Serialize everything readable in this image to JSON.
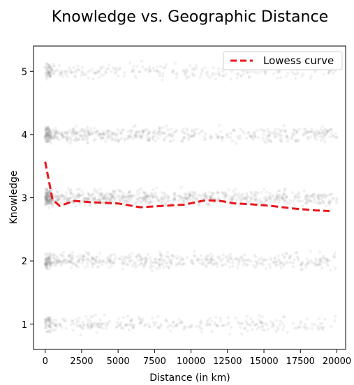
{
  "chart_data": {
    "type": "scatter",
    "title": "Knowledge vs. Geographic Distance",
    "xlabel": "Distance (in km)",
    "ylabel": "Knowledge",
    "xlim": [
      -800,
      20600
    ],
    "ylim": [
      0.6,
      5.4
    ],
    "xticks": [
      0,
      2500,
      5000,
      7500,
      10000,
      12500,
      15000,
      17500,
      20000
    ],
    "yticks": [
      1,
      2,
      3,
      4,
      5
    ],
    "grid": false,
    "legend_position": "top-right",
    "scatter": {
      "color": "#8c8c8c",
      "levels": [
        1,
        2,
        3,
        4,
        5
      ],
      "x_range": [
        0,
        20000
      ],
      "jitter": 0.12
    },
    "series": [
      {
        "name": "Lowess curve",
        "color": "#e8161b",
        "style": "dashed",
        "x": [
          0,
          500,
          1000,
          2000,
          3000,
          4000,
          5000,
          6500,
          8000,
          9500,
          11000,
          12000,
          13000,
          14000,
          15500,
          17000,
          18500,
          19500
        ],
        "y": [
          3.57,
          2.97,
          2.87,
          2.95,
          2.93,
          2.92,
          2.91,
          2.85,
          2.87,
          2.89,
          2.96,
          2.95,
          2.91,
          2.9,
          2.87,
          2.83,
          2.8,
          2.79
        ]
      }
    ]
  }
}
